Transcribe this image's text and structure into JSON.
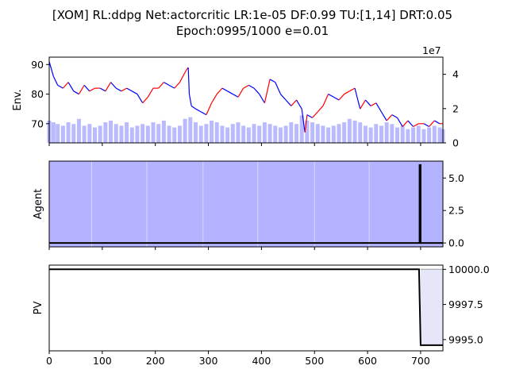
{
  "chart_data": {
    "title_line1": "[XOM] RL:ddpg Net:actorcritic LR:1e-05 DF:0.99 TU:[1,14] DRT:0.05",
    "title_line2": "Epoch:0995/1000 e=0.01",
    "x_range": [
      0,
      742
    ],
    "x_ticks": [
      "0",
      "100",
      "200",
      "300",
      "400",
      "500",
      "600",
      "700"
    ],
    "colors": {
      "price_up": "#ff0000",
      "price_down": "#0000ff",
      "volume": "#b3b3ff",
      "agent_fill": "#b3b3ff",
      "agent_line": "#000000",
      "pv_line": "#000000",
      "pv_fill": "#e6e6fa"
    },
    "panels": [
      {
        "type": "line",
        "name": "env",
        "ylabel": "Env.",
        "ylim": [
          63.5,
          92.5
        ],
        "y_ticks": [
          "70",
          "80",
          "90"
        ],
        "secondary_ylim": [
          0,
          50000000
        ],
        "secondary_ticks": [
          "0",
          "2",
          "4"
        ],
        "secondary_offset_label": "1e7",
        "price_x": [
          0,
          8,
          16,
          26,
          36,
          46,
          56,
          66,
          76,
          86,
          96,
          106,
          116,
          126,
          136,
          146,
          156,
          166,
          176,
          186,
          196,
          206,
          216,
          226,
          236,
          246,
          252,
          258,
          262,
          264,
          268,
          276,
          286,
          296,
          306,
          316,
          326,
          336,
          346,
          356,
          366,
          376,
          386,
          396,
          406,
          416,
          426,
          436,
          446,
          456,
          466,
          476,
          482,
          486,
          496,
          506,
          516,
          526,
          536,
          546,
          556,
          566,
          576,
          586,
          596,
          606,
          616,
          626,
          636,
          646,
          656,
          666,
          676,
          686,
          696,
          706,
          716,
          726,
          736,
          742
        ],
        "price_y": [
          91,
          86,
          83,
          82,
          84,
          81,
          80,
          83,
          81,
          82,
          82,
          81,
          84,
          82,
          81,
          82,
          81,
          80,
          77,
          79,
          82,
          82,
          84,
          83,
          82,
          84,
          86,
          88,
          89,
          80,
          76,
          75,
          74,
          73,
          77,
          80,
          82,
          81,
          80,
          79,
          82,
          83,
          82,
          80,
          77,
          85,
          84,
          80,
          78,
          76,
          78,
          75,
          67,
          73,
          72,
          74,
          76,
          80,
          79,
          78,
          80,
          81,
          82,
          75,
          78,
          76,
          77,
          74,
          71,
          73,
          72,
          69,
          71,
          69,
          70,
          70,
          69,
          71,
          70,
          70
        ],
        "volume_x": [
          0,
          8,
          16,
          26,
          36,
          46,
          56,
          66,
          76,
          86,
          96,
          106,
          116,
          126,
          136,
          146,
          156,
          166,
          176,
          186,
          196,
          206,
          216,
          226,
          236,
          246,
          256,
          266,
          276,
          286,
          296,
          306,
          316,
          326,
          336,
          346,
          356,
          366,
          376,
          386,
          396,
          406,
          416,
          426,
          436,
          446,
          456,
          466,
          476,
          486,
          496,
          506,
          516,
          526,
          536,
          546,
          556,
          566,
          576,
          586,
          596,
          606,
          616,
          626,
          636,
          646,
          656,
          666,
          676,
          686,
          696,
          706,
          716,
          726,
          736,
          742
        ],
        "volume_values": [
          13,
          12,
          11,
          10,
          12,
          11,
          14,
          10,
          11,
          9,
          10,
          12,
          13,
          11,
          10,
          12,
          9,
          10,
          11,
          10,
          12,
          11,
          13,
          10,
          9,
          10,
          14,
          15,
          12,
          10,
          11,
          13,
          12,
          10,
          9,
          11,
          12,
          10,
          9,
          11,
          10,
          12,
          11,
          10,
          9,
          10,
          12,
          11,
          16,
          13,
          12,
          11,
          10,
          9,
          10,
          11,
          12,
          14,
          13,
          12,
          10,
          9,
          11,
          10,
          12,
          11,
          9,
          10,
          8,
          9,
          10,
          8,
          9,
          10,
          9,
          8
        ]
      },
      {
        "type": "area",
        "name": "agent",
        "ylabel": "Agent",
        "ylim": [
          -0.3,
          6.3
        ],
        "y_ticks": [
          "0.0",
          "2.5",
          "5.0"
        ],
        "grid_x": [
          80,
          184,
          290,
          393,
          500,
          603
        ],
        "action_x": [
          0,
          698,
          698,
          700,
          700,
          742
        ],
        "action_y": [
          0,
          0,
          6,
          6,
          0,
          0
        ]
      },
      {
        "type": "line",
        "name": "pv",
        "ylabel": "PV",
        "ylim": [
          9994.2,
          10000.3
        ],
        "y_ticks": [
          "10000.0",
          "9997.5",
          "9995.0"
        ],
        "pv_x": [
          0,
          697,
          700,
          742
        ],
        "pv_y": [
          10000,
          10000,
          9994.6,
          9994.6
        ]
      }
    ]
  }
}
